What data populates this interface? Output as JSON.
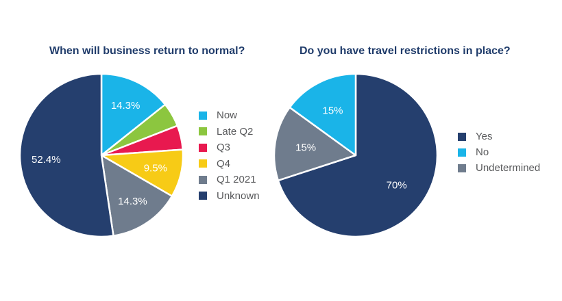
{
  "colors": {
    "now": "#1ab4e8",
    "late_q2": "#8cc63f",
    "q3": "#e8194f",
    "q4": "#f7cb16",
    "q1_2021": "#6f7c8d",
    "unknown": "#253f6e",
    "yes": "#253f6e",
    "no": "#1ab4e8",
    "undetermined": "#6f7c8d",
    "title": "#1f3b6a",
    "legend_text": "#58595b"
  },
  "chart_data": [
    {
      "type": "pie",
      "title": "When will business return to normal?",
      "slices": [
        {
          "label": "Now",
          "value": 14.3,
          "display": "14.3%",
          "color_key": "now"
        },
        {
          "label": "Late Q2",
          "value": 4.8,
          "display": "",
          "color_key": "late_q2"
        },
        {
          "label": "Q3",
          "value": 4.8,
          "display": "",
          "color_key": "q3"
        },
        {
          "label": "Q4",
          "value": 9.5,
          "display": "9.5%",
          "color_key": "q4"
        },
        {
          "label": "Q1 2021",
          "value": 14.3,
          "display": "14.3%",
          "color_key": "q1_2021"
        },
        {
          "label": "Unknown",
          "value": 52.4,
          "display": "52.4%",
          "color_key": "unknown"
        }
      ],
      "start": "12 o'clock",
      "direction": "clockwise",
      "legend": "right"
    },
    {
      "type": "pie",
      "title": "Do you have travel restrictions in place?",
      "slices": [
        {
          "label": "Yes",
          "value": 70,
          "display": "70%",
          "color_key": "yes"
        },
        {
          "label": "Undetermined",
          "value": 15,
          "display": "15%",
          "color_key": "undetermined"
        },
        {
          "label": "No",
          "value": 15,
          "display": "15%",
          "color_key": "no"
        }
      ],
      "legend_order": [
        "Yes",
        "No",
        "Undetermined"
      ],
      "start": "12 o'clock",
      "direction": "clockwise",
      "legend": "right"
    }
  ]
}
